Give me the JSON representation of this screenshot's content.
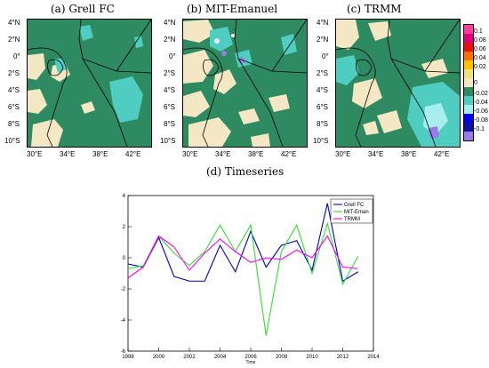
{
  "maps": {
    "panels": [
      {
        "title": "(a) Grell FC"
      },
      {
        "title": "(b) MIT-Emanuel"
      },
      {
        "title": "(c) TRMM"
      }
    ],
    "lat_ticks": [
      "4°N",
      "2°N",
      "0°",
      "2°S",
      "4°S",
      "6°S",
      "8°S",
      "10°S"
    ],
    "lon_ticks": [
      "30°E",
      "34°E",
      "38°E",
      "42°E"
    ],
    "colorbar": {
      "labels": [
        "0.1",
        "0.08",
        "0.06",
        "0.04",
        "0.02",
        "0",
        "-0.02",
        "-0.04",
        "-0.06",
        "-0.08",
        "-0.1"
      ],
      "colors": [
        "#ff3ca0",
        "#e0007c",
        "#e81010",
        "#ff7000",
        "#ffc000",
        "#f0e27a",
        "#f4e8c4",
        "#2e8a60",
        "#4fcdc0",
        "#a8eef0",
        "#0000e6",
        "#1010a0",
        "#9a7ce6"
      ]
    },
    "colors": {
      "background": "#2e8a60",
      "dry": "#f4e8c4",
      "wet": "#4fcdc0",
      "very_wet": "#a8eef0",
      "border": "#000000"
    }
  },
  "timeseries": {
    "title": "(d) Timeseries",
    "x_ticks": [
      "1998",
      "2000",
      "2002",
      "2004",
      "2006",
      "2008",
      "2010",
      "2012",
      "2014"
    ],
    "y_ticks": [
      "4",
      "2",
      "0",
      "-2",
      "-4",
      "-6"
    ],
    "xlabel": "Time"
  },
  "chart_data": {
    "type": "line",
    "title": "(d) Timeseries",
    "xlabel": "Time",
    "ylabel": "",
    "xlim": [
      1998,
      2014
    ],
    "ylim": [
      -6,
      4
    ],
    "x": [
      1998,
      1999,
      2000,
      2001,
      2002,
      2003,
      2004,
      2005,
      2006,
      2007,
      2008,
      2009,
      2010,
      2011,
      2012,
      2013
    ],
    "series": [
      {
        "name": "Grell FC",
        "color": "#0000cc",
        "values": [
          -0.4,
          -0.6,
          1.3,
          -1.2,
          -1.5,
          -1.5,
          0.8,
          -0.9,
          1.7,
          -0.6,
          0.8,
          1.1,
          -0.8,
          3.5,
          -1.5,
          -0.9
        ]
      },
      {
        "name": "MIT-Eman",
        "color": "#33dd33",
        "values": [
          -0.7,
          -0.5,
          1.4,
          0.3,
          -0.5,
          0.4,
          2.1,
          0.4,
          2.1,
          -5.0,
          0.4,
          2.1,
          -1.0,
          2.2,
          -1.7,
          0.1
        ]
      },
      {
        "name": "TRMM",
        "color": "#ff00ff",
        "values": [
          -1.3,
          -0.6,
          1.4,
          0.7,
          -0.8,
          0.3,
          1.2,
          0.4,
          -0.3,
          0.0,
          -0.1,
          0.5,
          0.0,
          1.4,
          -0.6,
          -0.7
        ]
      }
    ],
    "legend": "top-right",
    "grid": false
  }
}
